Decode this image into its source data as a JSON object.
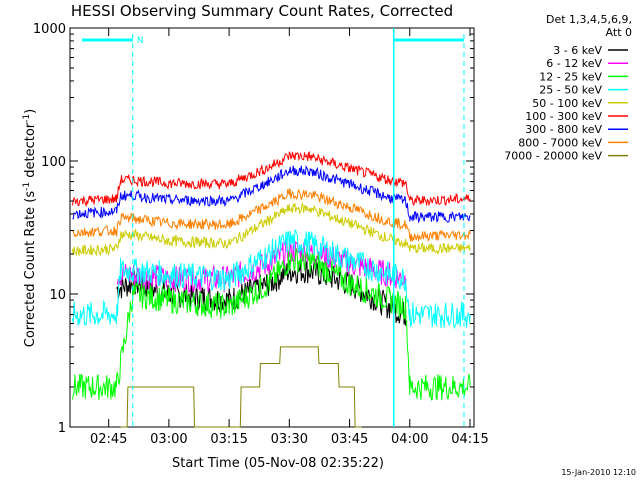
{
  "chart_data": {
    "type": "line",
    "title": "HESSI Observing Summary Count Rates, Corrected",
    "xlabel": "Start Time (05-Nov-08 02:35:22)",
    "ylabel_main": "Corrected Count Rate (s",
    "ylabel_sup1": "-1",
    "ylabel_mid": " detector",
    "ylabel_sup2": "-1",
    "ylabel_end": ")",
    "y_scale": "log",
    "ylim": [
      1,
      1000
    ],
    "xlim": [
      "02:35:22",
      "04:16:00"
    ],
    "x_ticks": [
      "02:45",
      "03:00",
      "03:15",
      "03:30",
      "03:45",
      "04:00",
      "04:15"
    ],
    "y_ticks": [
      "1",
      "10",
      "100",
      "1000"
    ],
    "grid": false,
    "legend_header": [
      "Det 1,3,4,5,6,9,",
      "Att 0"
    ],
    "legend_position": "right",
    "night_marker_label": "N",
    "timestamp": "15-Jan-2010 12:10",
    "series": [
      {
        "name": "3 - 6 keV",
        "color": "#000000",
        "x": [
          "02:35:22",
          "02:47:00",
          "02:51:00",
          "03:00:00",
          "03:15:00",
          "03:25:00",
          "03:30:00",
          "03:35:00",
          "03:45:00",
          "03:55:00",
          "03:59:00"
        ],
        "values": [
          null,
          11,
          12,
          10,
          9,
          12,
          15,
          15,
          12,
          8,
          7
        ]
      },
      {
        "name": "6 - 12 keV",
        "color": "#ff00ff",
        "x": [
          "02:47:00",
          "02:51:00",
          "03:00:00",
          "03:15:00",
          "03:25:00",
          "03:30:00",
          "03:35:00",
          "03:45:00",
          "03:55:00",
          "03:59:00"
        ],
        "values": [
          14,
          14,
          13,
          13,
          17,
          21,
          21,
          17,
          14,
          13
        ]
      },
      {
        "name": "12 - 25 keV",
        "color": "#00ff00",
        "x": [
          "02:36:00",
          "02:47:00",
          "02:51:00",
          "03:00:00",
          "03:15:00",
          "03:25:00",
          "03:30:00",
          "03:35:00",
          "03:45:00",
          "03:55:00",
          "03:59:00",
          "04:00:00",
          "04:15:00"
        ],
        "values": [
          2,
          2,
          10,
          9,
          8,
          12,
          18,
          18,
          12,
          9,
          8,
          2,
          2
        ]
      },
      {
        "name": "25 - 50 keV",
        "color": "#00ffff",
        "x": [
          "02:36:00",
          "02:47:00",
          "02:48:00",
          "02:51:00",
          "03:00:00",
          "03:15:00",
          "03:25:00",
          "03:30:00",
          "03:35:00",
          "03:45:00",
          "03:55:00",
          "03:59:00",
          "04:00:00",
          "04:15:00"
        ],
        "values": [
          7,
          7,
          15,
          15,
          14,
          13,
          20,
          25,
          24,
          18,
          14,
          13,
          7,
          7
        ]
      },
      {
        "name": "50 - 100 keV",
        "color": "#cccc00",
        "x": [
          "02:36:00",
          "02:47:00",
          "02:48:00",
          "02:51:00",
          "03:00:00",
          "03:15:00",
          "03:25:00",
          "03:30:00",
          "03:35:00",
          "03:45:00",
          "03:55:00",
          "03:59:00",
          "04:00:00",
          "04:15:00"
        ],
        "values": [
          21,
          22,
          28,
          28,
          25,
          24,
          36,
          44,
          44,
          34,
          26,
          24,
          22,
          22
        ]
      },
      {
        "name": "100 - 300 keV",
        "color": "#ff0000",
        "x": [
          "02:36:00",
          "02:47:00",
          "02:48:00",
          "02:51:00",
          "03:00:00",
          "03:15:00",
          "03:25:00",
          "03:30:00",
          "03:35:00",
          "03:45:00",
          "03:55:00",
          "03:59:00",
          "04:00:00",
          "04:15:00"
        ],
        "values": [
          50,
          52,
          72,
          72,
          68,
          67,
          90,
          110,
          108,
          88,
          72,
          68,
          50,
          52
        ]
      },
      {
        "name": "300 - 800 keV",
        "color": "#0000ff",
        "x": [
          "02:36:00",
          "02:47:00",
          "02:48:00",
          "02:51:00",
          "03:00:00",
          "03:15:00",
          "03:25:00",
          "03:30:00",
          "03:35:00",
          "03:45:00",
          "03:55:00",
          "03:59:00",
          "04:00:00",
          "04:15:00"
        ],
        "values": [
          40,
          42,
          55,
          55,
          51,
          50,
          70,
          85,
          84,
          67,
          53,
          50,
          38,
          38
        ]
      },
      {
        "name": "800 - 7000 keV",
        "color": "#ff8000",
        "x": [
          "02:36:00",
          "02:47:00",
          "02:48:00",
          "02:51:00",
          "03:00:00",
          "03:15:00",
          "03:25:00",
          "03:30:00",
          "03:35:00",
          "03:45:00",
          "03:55:00",
          "03:59:00",
          "04:00:00",
          "04:15:00"
        ],
        "values": [
          29,
          30,
          37,
          37,
          34,
          33,
          47,
          57,
          56,
          45,
          35,
          33,
          27,
          28
        ]
      },
      {
        "name": "7000 - 20000 keV",
        "color": "#808000",
        "x": [
          "02:48:00",
          "02:51:00",
          "03:00:00",
          "03:15:00",
          "03:20:00",
          "03:25:00",
          "03:30:00",
          "03:35:00",
          "03:40:00",
          "03:45:00",
          "03:48:00"
        ],
        "values": [
          1,
          2,
          2,
          1,
          2,
          3,
          4,
          4,
          3,
          2,
          1
        ]
      }
    ]
  }
}
